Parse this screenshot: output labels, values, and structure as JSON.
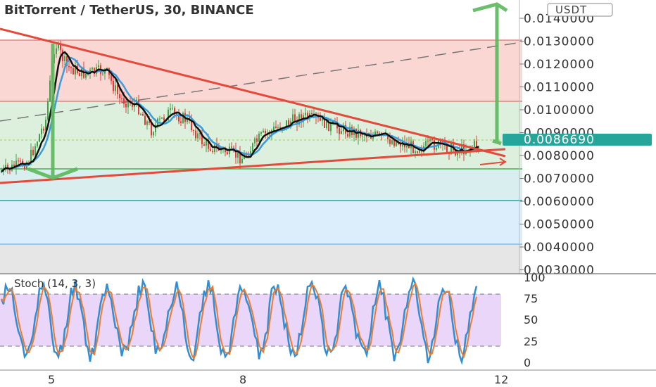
{
  "header": {
    "title": "BitTorrent / TetherUS, 30, BINANCE",
    "currency": "USDT"
  },
  "price_axis": {
    "ticks": [
      "0.0140000",
      "0.0130000",
      "0.0120000",
      "0.0110000",
      "0.0100000",
      "0.0090000",
      "0.0080000",
      "0.0070000",
      "0.0060000",
      "0.0050000",
      "0.0040000",
      "0.0030000"
    ],
    "current_price": "0.0086690",
    "current_price_color": "#26a69a"
  },
  "zones": {
    "resistance_color": "#f8c9c4",
    "support_color": "#d4ecd6",
    "lower_support_color": "#d0eaea",
    "deep_color": "#dceefc",
    "floor_color": "#e6e6e6"
  },
  "indicator": {
    "label": "Stoch (14, 3, 3)",
    "ticks": [
      "100",
      "75",
      "50",
      "25",
      "0"
    ],
    "band_color": "#e5ccf7"
  },
  "time_axis": {
    "labels": [
      "5",
      "8",
      "12"
    ]
  },
  "chart_data": {
    "type": "line",
    "title": "BitTorrent / TetherUS, 30, BINANCE",
    "ylim": [
      0.0029,
      0.0145
    ],
    "x_labels": [
      "5",
      "8",
      "12"
    ],
    "series": [],
    "notes_levels": [
      0.013,
      0.0104,
      0.0088,
      0.0074,
      0.006,
      0.0042
    ],
    "current": 0.008669,
    "stoch_range": [
      0,
      100
    ]
  }
}
